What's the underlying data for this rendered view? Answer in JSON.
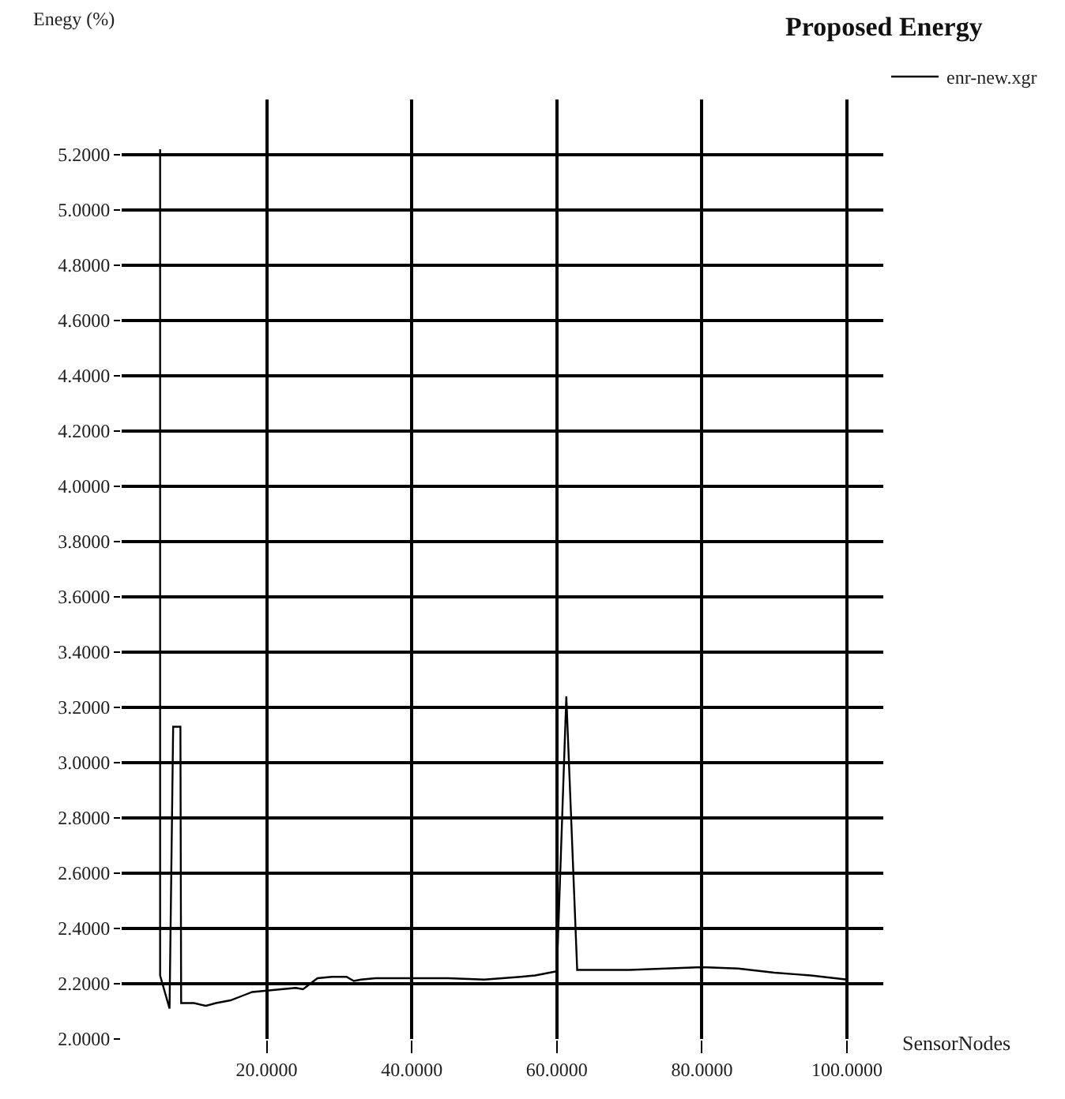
{
  "chart_data": {
    "type": "line",
    "title": "Proposed Energy",
    "xlabel": "SensorNodes",
    "ylabel": "Enegy (%)",
    "x": [
      5.3,
      5.3,
      6.6,
      7.1,
      8.1,
      8.2,
      10,
      11.6,
      13,
      15,
      17,
      18,
      20,
      22,
      24,
      25,
      26,
      27,
      29,
      31,
      32,
      33,
      35,
      40,
      45,
      50,
      55,
      57,
      60,
      61.3,
      62.8,
      65,
      70,
      75,
      80,
      85,
      90,
      95,
      100
    ],
    "series": [
      {
        "name": "enr-new.xgr",
        "color": "#000000",
        "values": [
          5.22,
          2.23,
          2.11,
          3.13,
          3.13,
          2.13,
          2.13,
          2.12,
          2.13,
          2.14,
          2.16,
          2.17,
          2.175,
          2.18,
          2.185,
          2.18,
          2.2,
          2.22,
          2.225,
          2.225,
          2.21,
          2.215,
          2.22,
          2.22,
          2.22,
          2.215,
          2.225,
          2.23,
          2.245,
          3.24,
          2.25,
          2.25,
          2.25,
          2.255,
          2.26,
          2.255,
          2.24,
          2.23,
          2.215
        ]
      }
    ],
    "xlim": [
      0,
      105
    ],
    "ylim": [
      2.0,
      5.4
    ],
    "xticks": [
      {
        "value": 20,
        "label": "20.0000"
      },
      {
        "value": 40,
        "label": "40.0000"
      },
      {
        "value": 60,
        "label": "60.0000"
      },
      {
        "value": 80,
        "label": "80.0000"
      },
      {
        "value": 100,
        "label": "100.0000"
      }
    ],
    "yticks": [
      {
        "value": 2.0,
        "label": "2.0000"
      },
      {
        "value": 2.2,
        "label": "2.2000"
      },
      {
        "value": 2.4,
        "label": "2.4000"
      },
      {
        "value": 2.6,
        "label": "2.6000"
      },
      {
        "value": 2.8,
        "label": "2.8000"
      },
      {
        "value": 3.0,
        "label": "3.0000"
      },
      {
        "value": 3.2,
        "label": "3.2000"
      },
      {
        "value": 3.4,
        "label": "3.4000"
      },
      {
        "value": 3.6,
        "label": "3.6000"
      },
      {
        "value": 3.8,
        "label": "3.8000"
      },
      {
        "value": 4.0,
        "label": "4.0000"
      },
      {
        "value": 4.2,
        "label": "4.2000"
      },
      {
        "value": 4.4,
        "label": "4.4000"
      },
      {
        "value": 4.6,
        "label": "4.6000"
      },
      {
        "value": 4.8,
        "label": "4.8000"
      },
      {
        "value": 5.0,
        "label": "5.0000"
      },
      {
        "value": 5.2,
        "label": "5.2000"
      }
    ],
    "grid": true,
    "legend": "top right",
    "marker": "none",
    "line_style": "solid"
  }
}
